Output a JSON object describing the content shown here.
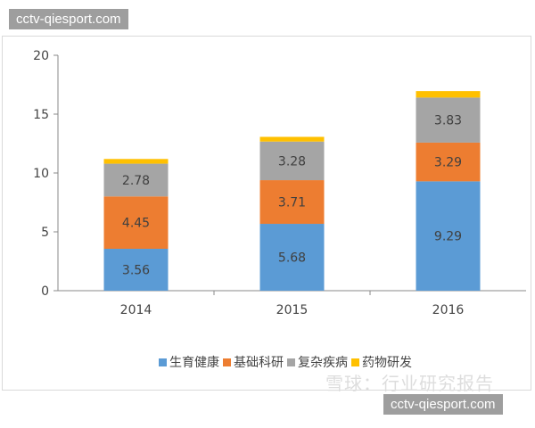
{
  "watermark_top": "cctv-qiesport.com",
  "watermark_bottom": "cctv-qiesport.com",
  "watermark_snowball": "雪球：行业研究报告",
  "chart_data": {
    "type": "bar",
    "stacked": true,
    "categories": [
      "2014",
      "2015",
      "2016"
    ],
    "ylim": [
      0,
      20
    ],
    "yticks": [
      "0",
      "5",
      "10",
      "15",
      "20"
    ],
    "grid": false,
    "legend_position": "bottom",
    "series": [
      {
        "name": "生育健康",
        "color": "#5b9bd5",
        "values": [
          3.56,
          5.68,
          9.29
        ],
        "labels": [
          "3.56",
          "5.68",
          "9.29"
        ]
      },
      {
        "name": "基础科研",
        "color": "#ed7d31",
        "values": [
          4.45,
          3.71,
          3.29
        ],
        "labels": [
          "4.45",
          "3.71",
          "3.29"
        ]
      },
      {
        "name": "复杂疾病",
        "color": "#a5a5a5",
        "values": [
          2.78,
          3.28,
          3.83
        ],
        "labels": [
          "2.78",
          "3.28",
          "3.83"
        ]
      },
      {
        "name": "药物研发",
        "color": "#ffc000",
        "values": [
          0.4,
          0.4,
          0.55
        ]
      }
    ]
  }
}
